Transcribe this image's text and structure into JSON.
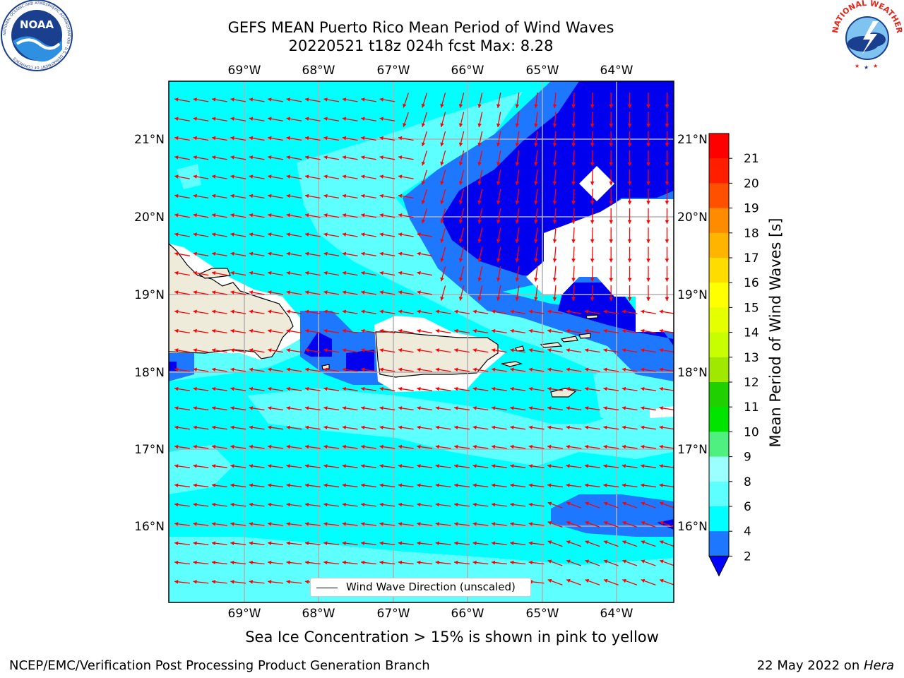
{
  "header": {
    "title_line1": "GEFS MEAN Puerto Rico Mean Period of Wind Waves",
    "title_line2": "20220521 t18z 024h fcst   Max: 8.28"
  },
  "logos": {
    "noaa_text": "NOAA",
    "noaa_ring_text": "NATIONAL OCEANIC AND ATMOSPHERIC ADMINISTRATION · U.S. DEPARTMENT OF COMMERCE",
    "nws_ring_text": "NATIONAL WEATHER SERVICE"
  },
  "map": {
    "lon_labels": [
      "69°W",
      "68°W",
      "67°W",
      "66°W",
      "65°W",
      "64°W"
    ],
    "lat_labels": [
      "21°N",
      "20°N",
      "19°N",
      "18°N",
      "17°N",
      "16°N"
    ],
    "legend_label": "Wind Wave Direction (unscaled)",
    "colors": {
      "land": "#efebdb",
      "arrow": "#ff0000",
      "gridline": "#b0b0b0",
      "no_data": "#ffffff"
    }
  },
  "colorbar": {
    "label": "Mean Period of Wind Waves [s]",
    "ticks": [
      "2",
      "4",
      "6",
      "8",
      "9",
      "10",
      "11",
      "12",
      "13",
      "14",
      "15",
      "16",
      "17",
      "18",
      "19",
      "20",
      "21"
    ],
    "colors": [
      "#0000ff",
      "#1e78ff",
      "#00ffff",
      "#5effff",
      "#9cffff",
      "#50f080",
      "#00e400",
      "#20d000",
      "#a0e800",
      "#c8ff00",
      "#e6ff00",
      "#ffff00",
      "#ffdc00",
      "#ffb400",
      "#ff8c00",
      "#ff5000",
      "#ff1e00",
      "#ff0000"
    ]
  },
  "caption": "Sea Ice Concentration > 15% is shown in pink to yellow",
  "footer": {
    "left": "NCEP/EMC/Verification Post Processing Product Generation Branch",
    "right_prefix": "22 May 2022 on ",
    "right_italic": "Hera"
  }
}
